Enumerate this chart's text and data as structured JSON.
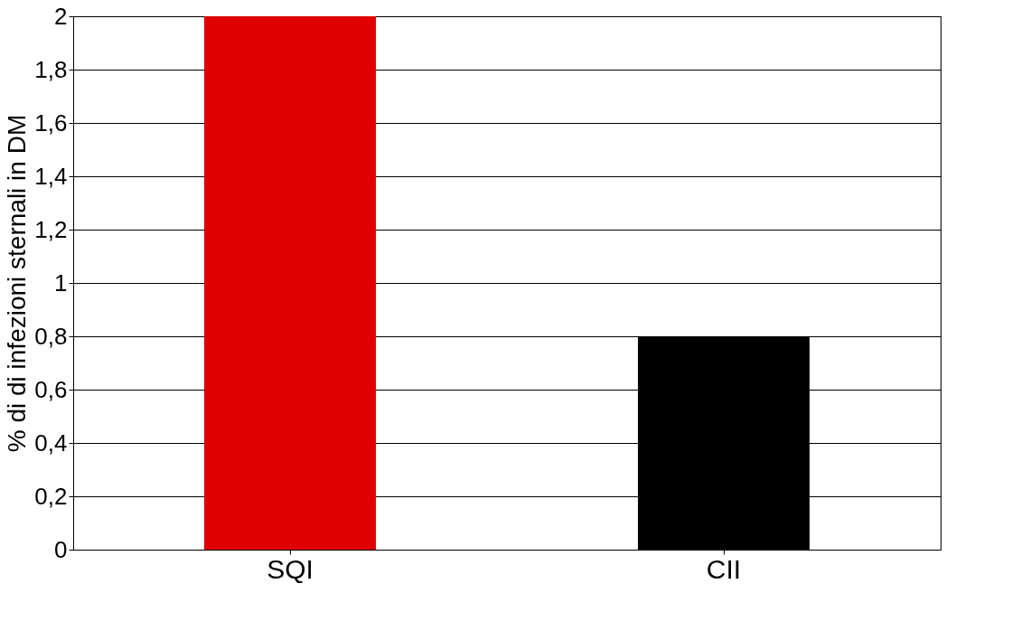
{
  "chart_data": {
    "type": "bar",
    "ylabel": "% di di infezioni sternali in DM",
    "categories": [
      "SQI",
      "CII"
    ],
    "values": [
      2.0,
      0.8
    ],
    "colors": [
      "#e00000",
      "#000000"
    ],
    "ylim": [
      0,
      2
    ],
    "yticks": [
      0,
      {
        "value": 0.2,
        "label": "0,2"
      },
      {
        "value": 0.4,
        "label": "0,4"
      },
      {
        "value": 0.6,
        "label": "0,6"
      },
      {
        "value": 0.8,
        "label": "0,8"
      },
      1,
      {
        "value": 1.2,
        "label": "1,2"
      },
      {
        "value": 1.4,
        "label": "1,4"
      },
      {
        "value": 1.6,
        "label": "1,6"
      },
      {
        "value": 1.8,
        "label": "1,8"
      },
      2
    ],
    "grid": "y"
  }
}
